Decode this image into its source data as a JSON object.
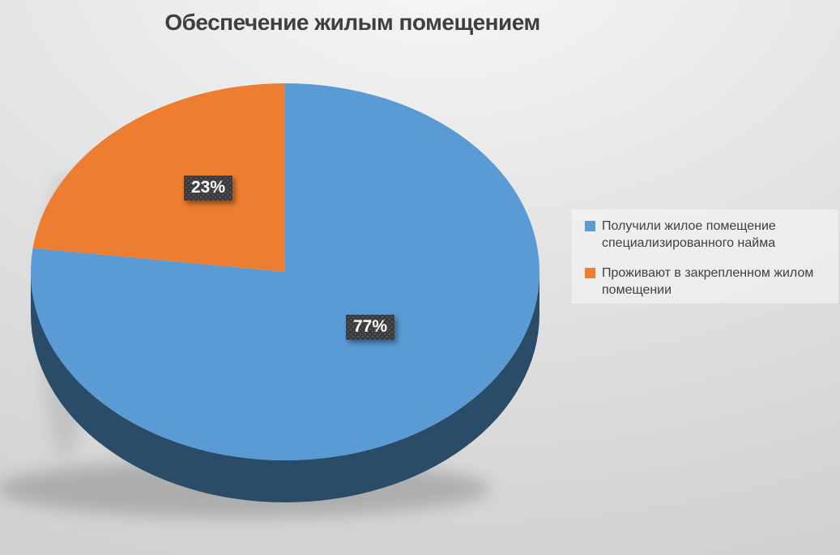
{
  "chart_data": {
    "type": "pie",
    "effect": "3d",
    "title": "Обеспечение жилым помещением",
    "legend_position": "right",
    "total": 100,
    "slices": [
      {
        "label": "Получили жилое помещение специализированного найма",
        "value": 77,
        "pct_label": "77%",
        "color": "#5B9BD5",
        "side_color": "#2B4C68"
      },
      {
        "label": "Проживают в закрепленном жилом помещении",
        "value": 23,
        "pct_label": "23%",
        "color": "#ED7D31"
      }
    ],
    "label_style": {
      "box_color": "#3A3A3A",
      "text_color": "#FFFFFF"
    }
  }
}
